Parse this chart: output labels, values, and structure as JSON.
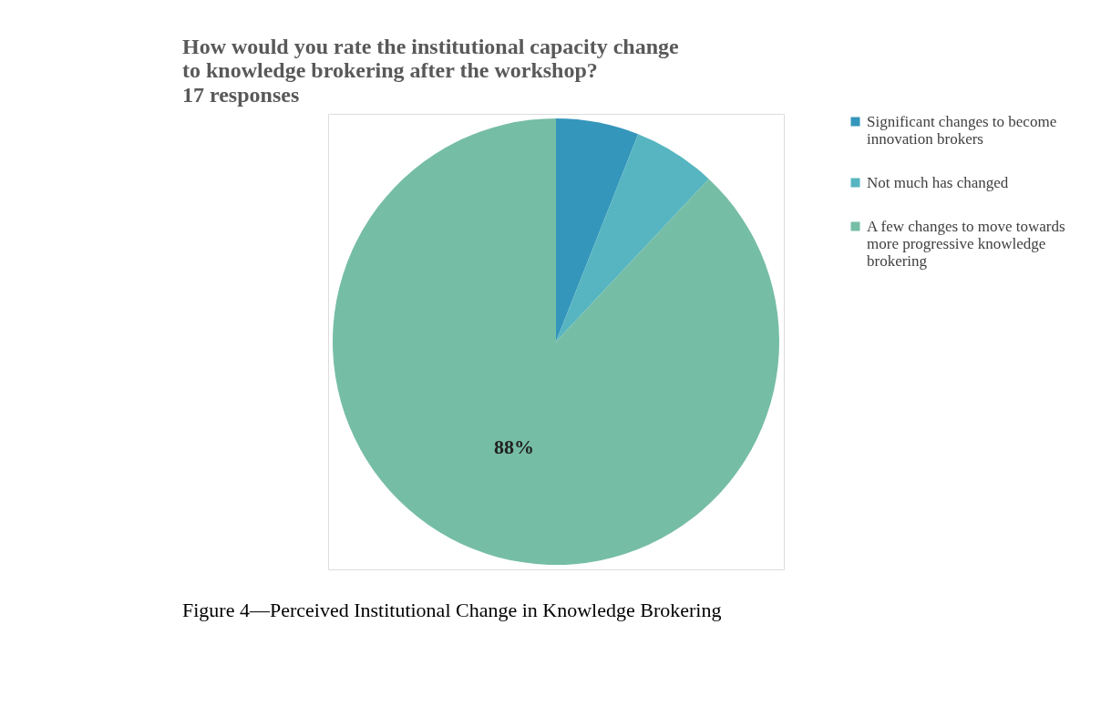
{
  "chart_data": {
    "type": "pie",
    "title": "How would you rate the institutional capacity change to knowledge brokering after the workshop?",
    "subtitle": "17 responses",
    "categories": [
      "Significant changes to become innovation brokers",
      "Not much has changed",
      "A few changes to move towards more progressive knowledge brokering"
    ],
    "values": [
      6,
      6,
      88
    ],
    "colors": [
      "#3596bb",
      "#56b5c0",
      "#76bda6"
    ],
    "value_labels": [
      null,
      null,
      "88%"
    ],
    "legend": "right",
    "annotations": [
      "Figure 4—Perceived Institutional Change in Knowledge Brokering"
    ]
  }
}
